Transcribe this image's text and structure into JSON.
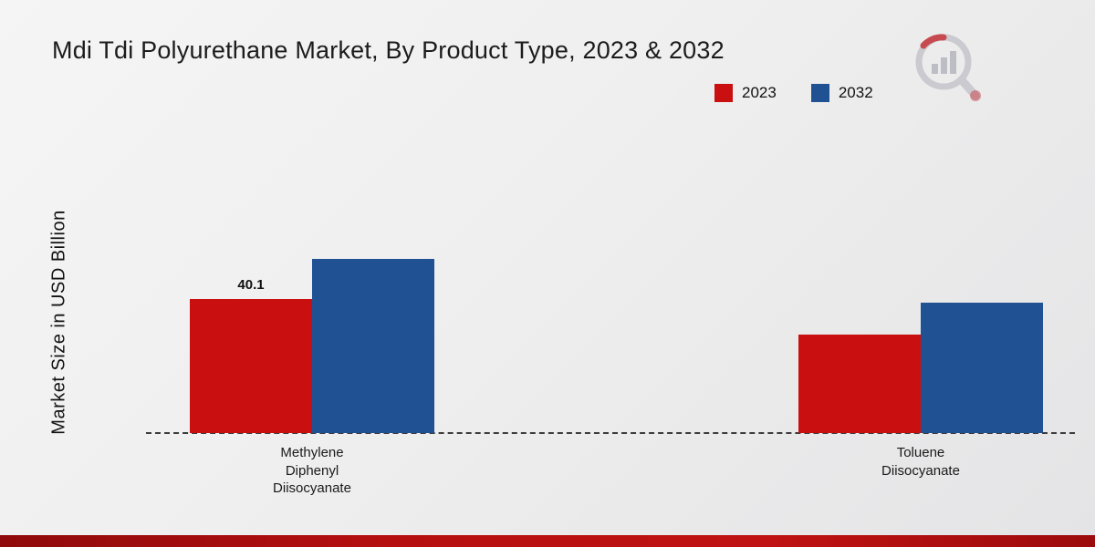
{
  "chart_data": {
    "type": "bar",
    "title": "Mdi Tdi Polyurethane Market, By Product Type, 2023 & 2032",
    "ylabel": "Market Size in USD Billion",
    "xlabel": "",
    "categories": [
      "Methylene Diphenyl Diisocyanate",
      "Toluene Diisocyanate"
    ],
    "categories_display": [
      "Methylene\nDiphenyl\nDiisocyanate",
      "Toluene\nDiisocyanate"
    ],
    "series": [
      {
        "name": "2023",
        "color": "#c90f0f",
        "values": [
          40.1,
          29.5
        ]
      },
      {
        "name": "2032",
        "color": "#1f5193",
        "values": [
          52.0,
          39.0
        ]
      }
    ],
    "data_labels": [
      {
        "series": "2023",
        "category_index": 0,
        "text": "40.1"
      }
    ],
    "legend_position": "top-right",
    "grid": false,
    "axis_style": "dashed-baseline",
    "ylim": [
      0,
      60
    ]
  },
  "branding": {
    "accent_red": "#b50f10",
    "logo": "magnifier-bar-chart-watermark"
  }
}
